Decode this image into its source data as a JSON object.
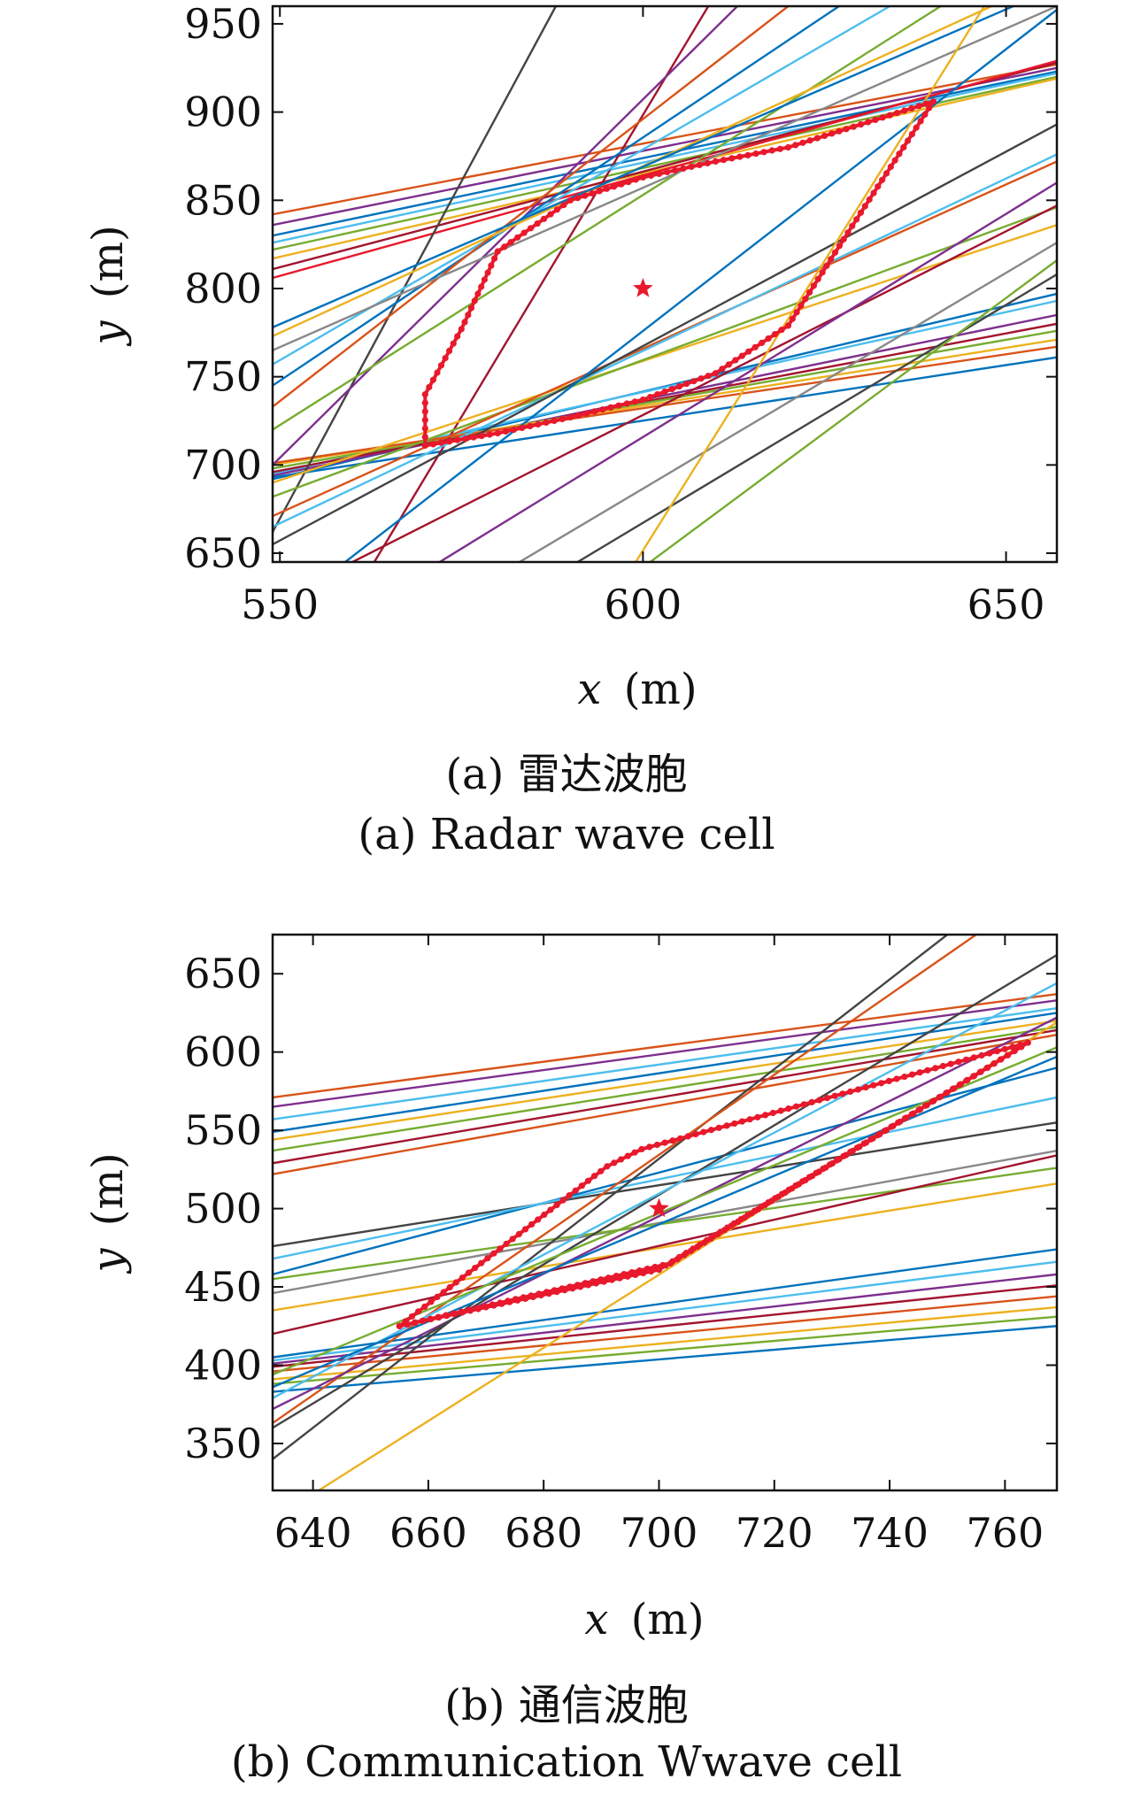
{
  "chart_data": [
    {
      "type": "line",
      "panel": "a",
      "caption_cn": "(a) 雷达波胞",
      "caption_en": "(a) Radar wave cell",
      "xlabel_var": "x",
      "xlabel_unit": "(m)",
      "ylabel_var": "y",
      "ylabel_unit": "(m)",
      "xlim": [
        549,
        657
      ],
      "ylim": [
        645,
        960
      ],
      "xticks": [
        550,
        600,
        650
      ],
      "yticks": [
        650,
        700,
        750,
        800,
        850,
        900,
        950
      ],
      "grid": false,
      "target": {
        "x": 600,
        "y": 800,
        "color": "#e8192c"
      },
      "cell_color": "#e8192c",
      "cell_polygon": [
        [
          570,
          711
        ],
        [
          580,
          718
        ],
        [
          590,
          727
        ],
        [
          600,
          737
        ],
        [
          610,
          752
        ],
        [
          620,
          779
        ],
        [
          630,
          843
        ],
        [
          640,
          906
        ],
        [
          630,
          893
        ],
        [
          620,
          880
        ],
        [
          610,
          872
        ],
        [
          600,
          863
        ],
        [
          590,
          850
        ],
        [
          580,
          821
        ],
        [
          575,
          777
        ],
        [
          570,
          740
        ],
        [
          570,
          711
        ]
      ],
      "lines": [
        {
          "color": "#d95319",
          "p": [
            [
              549,
              842
            ],
            [
              657,
              927
            ]
          ]
        },
        {
          "color": "#7e2f8e",
          "p": [
            [
              549,
              836
            ],
            [
              657,
              925
            ]
          ]
        },
        {
          "color": "#0072bd",
          "p": [
            [
              549,
              830
            ],
            [
              657,
              923
            ]
          ]
        },
        {
          "color": "#4dbeee",
          "p": [
            [
              549,
              826
            ],
            [
              657,
              922
            ]
          ]
        },
        {
          "color": "#77ac30",
          "p": [
            [
              549,
              822
            ],
            [
              657,
              920
            ]
          ]
        },
        {
          "color": "#edb120",
          "p": [
            [
              549,
              817
            ],
            [
              657,
              919
            ]
          ]
        },
        {
          "color": "#a2142f",
          "p": [
            [
              549,
              811
            ],
            [
              657,
              928
            ]
          ]
        },
        {
          "color": "#e8192c",
          "p": [
            [
              549,
              806
            ],
            [
              657,
              929
            ]
          ]
        },
        {
          "color": "#0072bd",
          "p": [
            [
              549,
              692
            ],
            [
              657,
              797
            ]
          ]
        },
        {
          "color": "#4dbeee",
          "p": [
            [
              549,
              695
            ],
            [
              657,
              793
            ]
          ]
        },
        {
          "color": "#7e2f8e",
          "p": [
            [
              549,
              694
            ],
            [
              657,
              785
            ]
          ]
        },
        {
          "color": "#a2142f",
          "p": [
            [
              549,
              696
            ],
            [
              657,
              780
            ]
          ]
        },
        {
          "color": "#77ac30",
          "p": [
            [
              549,
              698
            ],
            [
              657,
              776
            ]
          ]
        },
        {
          "color": "#edb120",
          "p": [
            [
              549,
              700
            ],
            [
              657,
              771
            ]
          ]
        },
        {
          "color": "#d95319",
          "p": [
            [
              549,
              701
            ],
            [
              657,
              767
            ]
          ]
        },
        {
          "color": "#0072bd",
          "p": [
            [
              549,
              693
            ],
            [
              657,
              761
            ]
          ]
        },
        {
          "color": "#444444",
          "p": [
            [
              549,
              662
            ],
            [
              588,
              960
            ]
          ]
        },
        {
          "color": "#a2142f",
          "p": [
            [
              563,
              645
            ],
            [
              609,
              960
            ]
          ]
        },
        {
          "color": "#7e2f8e",
          "p": [
            [
              549,
              700
            ],
            [
              613,
              960
            ]
          ]
        },
        {
          "color": "#0072bd",
          "p": [
            [
              549,
              745
            ],
            [
              627,
              960
            ]
          ]
        },
        {
          "color": "#4dbeee",
          "p": [
            [
              549,
              757
            ],
            [
              634,
              960
            ]
          ]
        },
        {
          "color": "#d95319",
          "p": [
            [
              549,
              733
            ],
            [
              620,
              960
            ]
          ]
        },
        {
          "color": "#77ac30",
          "p": [
            [
              549,
              720
            ],
            [
              641,
              960
            ]
          ]
        },
        {
          "color": "#888888",
          "p": [
            [
              549,
              765
            ],
            [
              657,
              960
            ]
          ]
        },
        {
          "color": "#edb120",
          "p": [
            [
              549,
              773
            ],
            [
              648,
              960
            ]
          ]
        },
        {
          "color": "#0072bd",
          "p": [
            [
              549,
              778
            ],
            [
              651,
              960
            ]
          ]
        },
        {
          "color": "#edb120",
          "p": [
            [
              549,
              690
            ],
            [
              657,
              836
            ]
          ]
        },
        {
          "color": "#77ac30",
          "p": [
            [
              549,
              682
            ],
            [
              657,
              846
            ]
          ]
        },
        {
          "color": "#d95319",
          "p": [
            [
              549,
              671
            ],
            [
              657,
              872
            ]
          ]
        },
        {
          "color": "#4dbeee",
          "p": [
            [
              549,
              665
            ],
            [
              657,
              876
            ]
          ]
        },
        {
          "color": "#444444",
          "p": [
            [
              549,
              655
            ],
            [
              657,
              893
            ]
          ]
        },
        {
          "color": "#0072bd",
          "p": [
            [
              559,
              645
            ],
            [
              657,
              958
            ]
          ]
        },
        {
          "color": "#a2142f",
          "p": [
            [
              560,
              645
            ],
            [
              657,
              847
            ]
          ]
        },
        {
          "color": "#7e2f8e",
          "p": [
            [
              572,
              645
            ],
            [
              657,
              860
            ]
          ]
        },
        {
          "color": "#444444",
          "p": [
            [
              591,
              645
            ],
            [
              657,
              808
            ]
          ]
        },
        {
          "color": "#77ac30",
          "p": [
            [
              601,
              645
            ],
            [
              657,
              816
            ]
          ]
        },
        {
          "color": "#888888",
          "p": [
            [
              583,
              645
            ],
            [
              657,
              826
            ]
          ]
        },
        {
          "color": "#edb120",
          "p": [
            [
              599,
              645
            ],
            [
              647,
              960
            ]
          ]
        }
      ]
    },
    {
      "type": "line",
      "panel": "b",
      "caption_cn": "(b) 通信波胞",
      "caption_en": "(b) Communication Wwave cell",
      "xlabel_var": "x",
      "xlabel_unit": "(m)",
      "ylabel_var": "y",
      "ylabel_unit": "(m)",
      "xlim": [
        633,
        769
      ],
      "ylim": [
        320,
        675
      ],
      "xticks": [
        640,
        660,
        680,
        700,
        720,
        740,
        760
      ],
      "yticks": [
        350,
        400,
        450,
        500,
        550,
        600,
        650
      ],
      "grid": false,
      "target": {
        "x": 700,
        "y": 500,
        "color": "#e8192c"
      },
      "cell_color": "#e8192c",
      "cell_polygon": [
        [
          655,
          425
        ],
        [
          702,
          465
        ],
        [
          764,
          606
        ],
        [
          697,
          538
        ],
        [
          691,
          527
        ],
        [
          655,
          425
        ],
        [
          700,
          461
        ],
        [
          764,
          606
        ]
      ],
      "lines": [
        {
          "color": "#d95319",
          "p": [
            [
              633,
              571
            ],
            [
              769,
              637
            ]
          ]
        },
        {
          "color": "#7e2f8e",
          "p": [
            [
              633,
              565
            ],
            [
              769,
              633
            ]
          ]
        },
        {
          "color": "#4dbeee",
          "p": [
            [
              633,
              557
            ],
            [
              769,
              628
            ]
          ]
        },
        {
          "color": "#0072bd",
          "p": [
            [
              633,
              549
            ],
            [
              769,
              625
            ]
          ]
        },
        {
          "color": "#edb120",
          "p": [
            [
              633,
              544
            ],
            [
              769,
              620
            ]
          ]
        },
        {
          "color": "#77ac30",
          "p": [
            [
              633,
              537
            ],
            [
              769,
              616
            ]
          ]
        },
        {
          "color": "#a2142f",
          "p": [
            [
              633,
              529
            ],
            [
              769,
              614
            ]
          ]
        },
        {
          "color": "#d95319",
          "p": [
            [
              633,
              522
            ],
            [
              769,
              611
            ]
          ]
        },
        {
          "color": "#0072bd",
          "p": [
            [
              633,
              383
            ],
            [
              769,
              425
            ]
          ]
        },
        {
          "color": "#77ac30",
          "p": [
            [
              633,
              388
            ],
            [
              769,
              431
            ]
          ]
        },
        {
          "color": "#edb120",
          "p": [
            [
              633,
              391
            ],
            [
              769,
              437
            ]
          ]
        },
        {
          "color": "#d95319",
          "p": [
            [
              633,
              396
            ],
            [
              769,
              444
            ]
          ]
        },
        {
          "color": "#a2142f",
          "p": [
            [
              633,
              399
            ],
            [
              769,
              451
            ]
          ]
        },
        {
          "color": "#7e2f8e",
          "p": [
            [
              633,
              401
            ],
            [
              769,
              458
            ]
          ]
        },
        {
          "color": "#4dbeee",
          "p": [
            [
              633,
              403
            ],
            [
              769,
              466
            ]
          ]
        },
        {
          "color": "#0072bd",
          "p": [
            [
              633,
              405
            ],
            [
              769,
              474
            ]
          ]
        },
        {
          "color": "#444444",
          "p": [
            [
              633,
              476
            ],
            [
              769,
              555
            ]
          ]
        },
        {
          "color": "#0072bd",
          "p": [
            [
              633,
              458
            ],
            [
              769,
              590
            ]
          ]
        },
        {
          "color": "#4dbeee",
          "p": [
            [
              633,
              468
            ],
            [
              769,
              571
            ]
          ]
        },
        {
          "color": "#888888",
          "p": [
            [
              633,
              446
            ],
            [
              769,
              537
            ]
          ]
        },
        {
          "color": "#edb120",
          "p": [
            [
              633,
              435
            ],
            [
              769,
              516
            ]
          ]
        },
        {
          "color": "#77ac30",
          "p": [
            [
              633,
              455
            ],
            [
              769,
              526
            ]
          ]
        },
        {
          "color": "#a2142f",
          "p": [
            [
              633,
              420
            ],
            [
              769,
              534
            ]
          ]
        },
        {
          "color": "#444444",
          "p": [
            [
              633,
              340
            ],
            [
              750,
              675
            ]
          ]
        },
        {
          "color": "#d95319",
          "p": [
            [
              633,
              363
            ],
            [
              755,
              675
            ]
          ]
        },
        {
          "color": "#7e2f8e",
          "p": [
            [
              633,
              372
            ],
            [
              769,
              622
            ]
          ]
        },
        {
          "color": "#444444",
          "p": [
            [
              633,
              360
            ],
            [
              769,
              662
            ]
          ]
        },
        {
          "color": "#4dbeee",
          "p": [
            [
              633,
              379
            ],
            [
              769,
              644
            ]
          ]
        },
        {
          "color": "#edb120",
          "p": [
            [
              641,
              320
            ],
            [
              769,
              619
            ]
          ]
        },
        {
          "color": "#0072bd",
          "p": [
            [
              633,
              386
            ],
            [
              769,
              597
            ]
          ]
        },
        {
          "color": "#77ac30",
          "p": [
            [
              633,
              394
            ],
            [
              769,
              603
            ]
          ]
        }
      ]
    }
  ]
}
